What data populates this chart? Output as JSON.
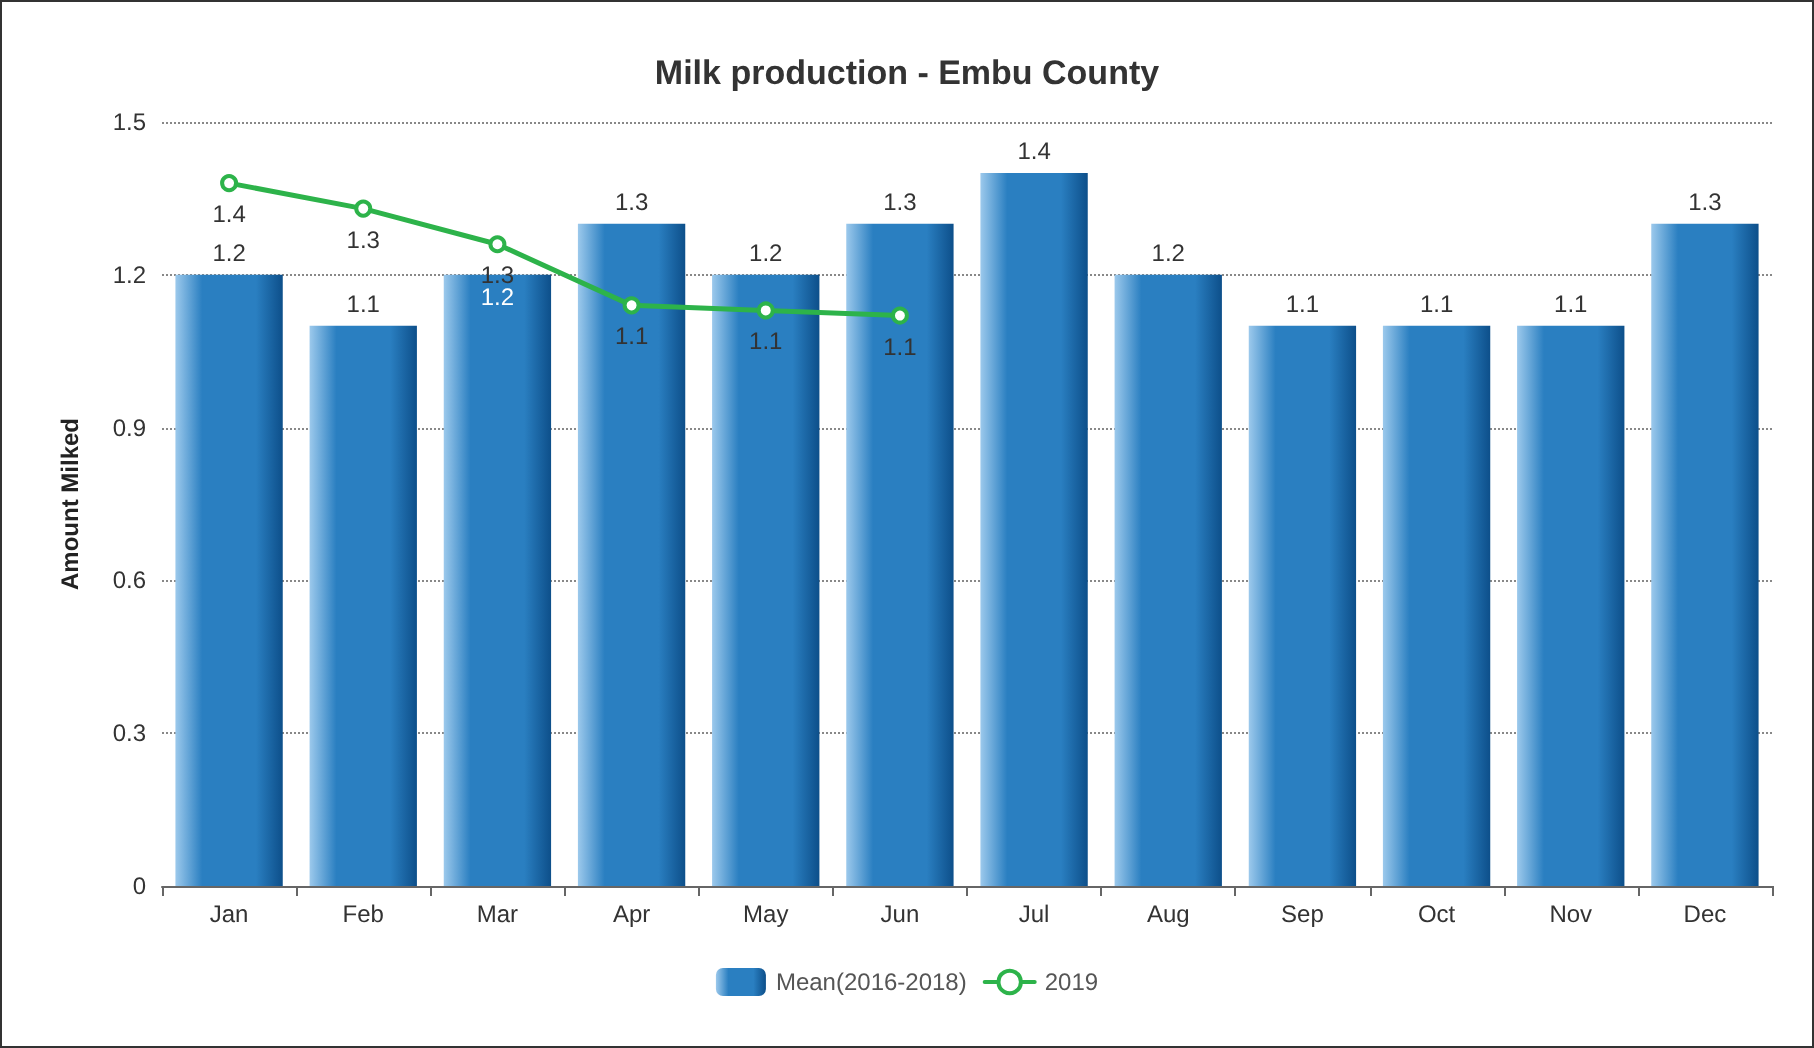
{
  "chart_data": {
    "type": "bar",
    "title": "Milk production - Embu County",
    "ylabel": "Amount Milked",
    "categories": [
      "Jan",
      "Feb",
      "Mar",
      "Apr",
      "May",
      "Jun",
      "Jul",
      "Aug",
      "Sep",
      "Oct",
      "Nov",
      "Dec"
    ],
    "series": [
      {
        "name": "Mean(2016-2018)",
        "color": "#2a7fc1",
        "values": [
          1.2,
          1.1,
          1.2,
          1.3,
          1.2,
          1.3,
          1.4,
          1.2,
          1.1,
          1.1,
          1.1,
          1.3
        ]
      },
      {
        "name": "2019",
        "type": "line",
        "color": "#2db34a",
        "values": [
          1.38,
          1.33,
          1.26,
          1.14,
          1.13,
          1.12,
          null,
          null,
          null,
          null,
          null,
          null
        ],
        "value_labels": [
          "1.4",
          "1.3",
          "1.3",
          "1.1",
          "1.1",
          "1.1",
          null,
          null,
          null,
          null,
          null,
          null
        ]
      }
    ],
    "data_labels": true,
    "ylim": [
      0,
      1.5
    ],
    "yticks": [
      0,
      0.3,
      0.6,
      0.9,
      1.2,
      1.5
    ],
    "grid": "y",
    "legend": "bottom",
    "marker": "circle"
  }
}
